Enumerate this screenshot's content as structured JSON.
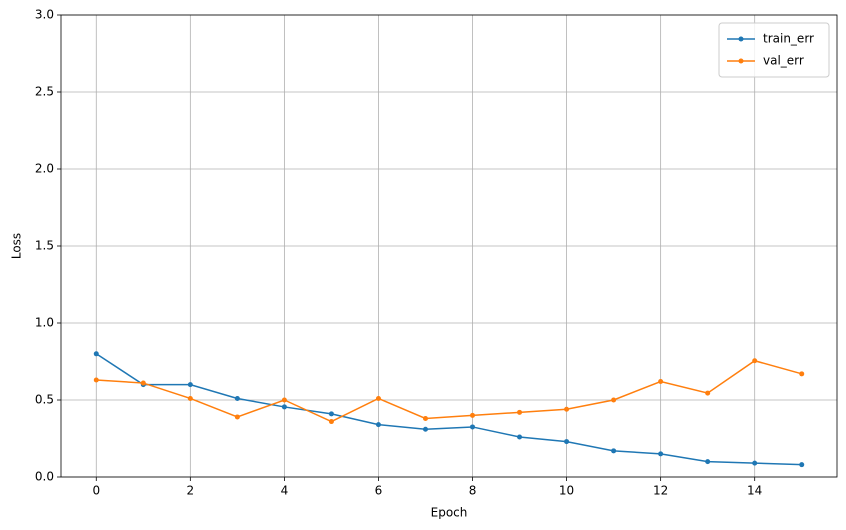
{
  "chart_data": {
    "type": "line",
    "x": [
      0,
      1,
      2,
      3,
      4,
      5,
      6,
      7,
      8,
      9,
      10,
      11,
      12,
      13,
      14,
      15
    ],
    "series": [
      {
        "name": "train_err",
        "color": "#1f77b4",
        "values": [
          0.8,
          0.6,
          0.6,
          0.51,
          0.455,
          0.41,
          0.34,
          0.31,
          0.325,
          0.26,
          0.23,
          0.17,
          0.15,
          0.1,
          0.09,
          0.08
        ]
      },
      {
        "name": "val_err",
        "color": "#ff7f0e",
        "values": [
          0.63,
          0.61,
          0.51,
          0.39,
          0.5,
          0.36,
          0.51,
          0.38,
          0.4,
          0.42,
          0.44,
          0.5,
          0.62,
          0.545,
          0.755,
          0.67
        ]
      }
    ],
    "xlabel": "Epoch",
    "ylabel": "Loss",
    "xlim": [
      -0.75,
      15.75
    ],
    "ylim": [
      0,
      3
    ],
    "xticks": [
      0,
      2,
      4,
      6,
      8,
      10,
      12,
      14
    ],
    "yticks": [
      {
        "value": 0,
        "label": "0.0"
      },
      0.5,
      {
        "value": 1,
        "label": "1.0"
      },
      1.5,
      {
        "value": 2,
        "label": "2.0"
      },
      2.5,
      {
        "value": 3,
        "label": "3.0"
      }
    ],
    "grid": true,
    "legend": "upper right"
  }
}
